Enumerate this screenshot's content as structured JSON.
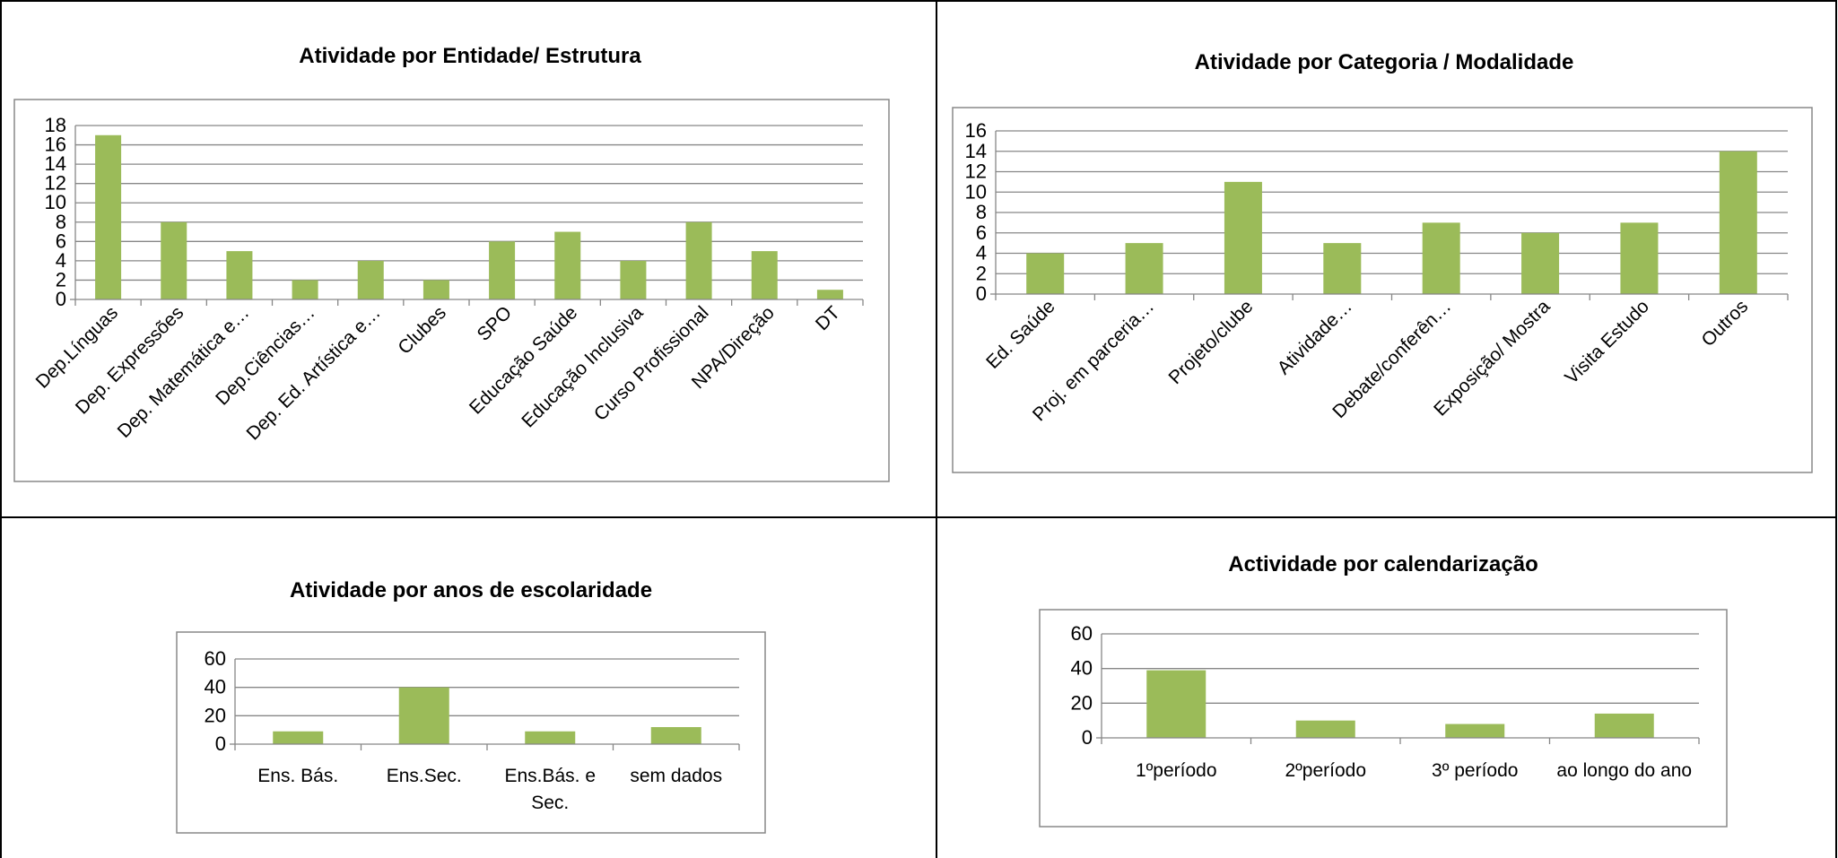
{
  "style": {
    "bar_color": "#9bbb59",
    "grid_color": "#878787",
    "frame_color": "#888888",
    "cell_border_color": "#000000",
    "text_color": "#000000"
  },
  "chart_data": [
    {
      "type": "bar",
      "title": "Atividade por Entidade/ Estrutura",
      "categories": [
        "Dep.Línguas",
        "Dep. Expressões",
        "Dep. Matemática e…",
        "Dep.Ciências…",
        "Dep. Ed. Artística e…",
        "Clubes",
        "SPO",
        "Educação Saúde",
        "Educação Inclusiva",
        "Curso Profissional",
        "NPA/Direção",
        "DT"
      ],
      "values": [
        17,
        8,
        5,
        2,
        4,
        2,
        6,
        7,
        4,
        8,
        5,
        1
      ],
      "ylim": [
        0,
        18
      ],
      "yticks": [
        0,
        2,
        4,
        6,
        8,
        10,
        12,
        14,
        16,
        18
      ],
      "grid": true,
      "legend": false
    },
    {
      "type": "bar",
      "title": "Atividade por Categoria / Modalidade",
      "categories": [
        "Ed. Saúde",
        "Proj. em parceria…",
        "Projeto/clube",
        "Atividade…",
        "Debate/conferên…",
        "Exposição/ Mostra",
        "Visita Estudo",
        "Outros"
      ],
      "values": [
        4,
        5,
        11,
        5,
        7,
        6,
        7,
        14
      ],
      "ylim": [
        0,
        16
      ],
      "yticks": [
        0,
        2,
        4,
        6,
        8,
        10,
        12,
        14,
        16
      ],
      "grid": true,
      "legend": false
    },
    {
      "type": "bar",
      "title": "Atividade por anos de escolaridade",
      "categories": [
        "Ens. Bás.",
        "Ens.Sec.",
        "Ens.Bás. e Sec.",
        "sem dados"
      ],
      "values": [
        9,
        40,
        9,
        12
      ],
      "ylim": [
        0,
        60
      ],
      "yticks": [
        0,
        20,
        40,
        60
      ],
      "grid": true,
      "legend": false
    },
    {
      "type": "bar",
      "title": "Actividade por calendarização",
      "categories": [
        "1ºperíodo",
        "2ºperíodo",
        "3º período",
        "ao longo do ano"
      ],
      "values": [
        39,
        10,
        8,
        14
      ],
      "ylim": [
        0,
        60
      ],
      "yticks": [
        0,
        20,
        40,
        60
      ],
      "grid": true,
      "legend": false
    }
  ]
}
